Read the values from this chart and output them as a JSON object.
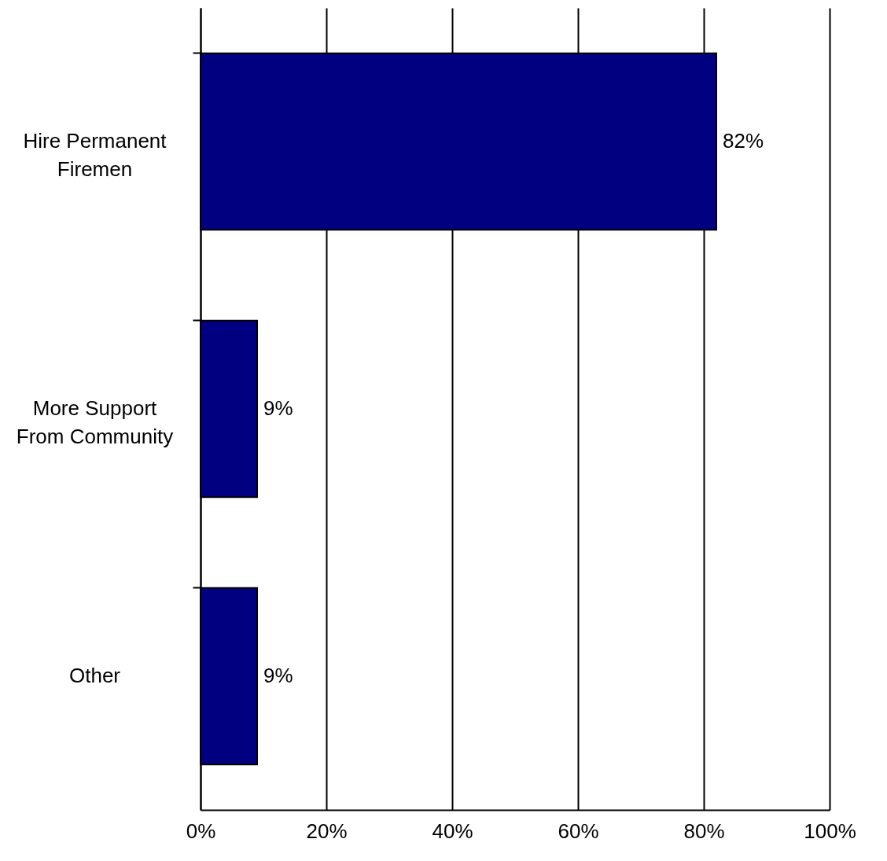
{
  "chart_data": {
    "type": "bar",
    "orientation": "horizontal",
    "categories": [
      "Hire Permanent Firemen",
      "More Support From Community",
      "Other"
    ],
    "values": [
      82,
      9,
      9
    ],
    "value_labels": [
      "82%",
      "9%",
      "9%"
    ],
    "color": "#000080",
    "xlim": [
      0,
      100
    ],
    "xticks": [
      {
        "value": 0,
        "label": "0%"
      },
      {
        "value": 20,
        "label": "20%"
      },
      {
        "value": 40,
        "label": "40%"
      },
      {
        "value": 60,
        "label": "60%"
      },
      {
        "value": 80,
        "label": "80%"
      },
      {
        "value": 100,
        "label": "100%"
      }
    ],
    "grid": "x"
  }
}
